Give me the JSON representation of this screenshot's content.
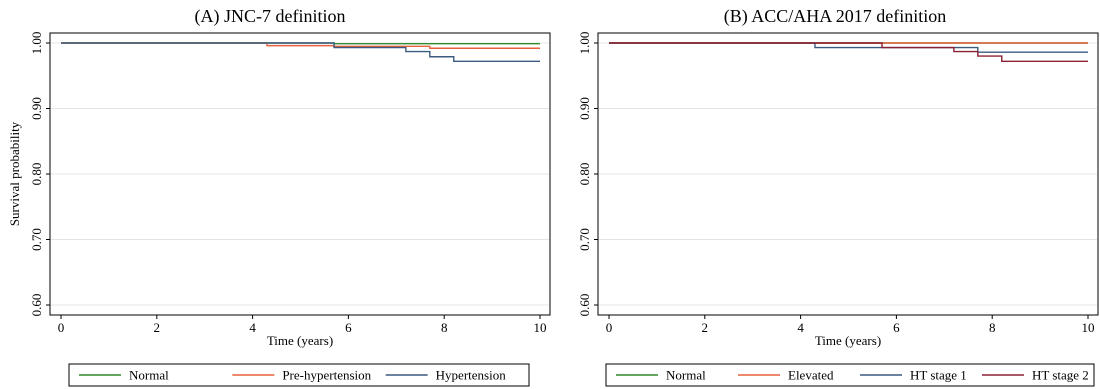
{
  "chart_data": [
    {
      "type": "line",
      "title": "(A) JNC-7 definition",
      "xlabel": "Time (years)",
      "ylabel": "Survival probability",
      "xlim": [
        0,
        10
      ],
      "ylim": [
        0.6,
        1.0
      ],
      "xticks": [
        "0",
        "2",
        "4",
        "6",
        "8",
        "10"
      ],
      "yticks": [
        "0.60",
        "0.70",
        "0.80",
        "0.90",
        "1.00"
      ],
      "grid": true,
      "legend_position": "bottom",
      "series": [
        {
          "name": "Normal",
          "color": "#2e8b2e",
          "x": [
            0,
            5.7,
            10
          ],
          "y": [
            1.0,
            0.999,
            0.999
          ]
        },
        {
          "name": "Pre-hypertension",
          "color": "#e8603c",
          "x": [
            0,
            4.3,
            5.7,
            7.7,
            10
          ],
          "y": [
            1.0,
            0.996,
            0.995,
            0.992,
            0.992
          ]
        },
        {
          "name": "Hypertension",
          "color": "#3b5a80",
          "x": [
            0,
            5.7,
            7.2,
            7.7,
            8.2,
            10
          ],
          "y": [
            1.0,
            0.993,
            0.987,
            0.979,
            0.972,
            0.972
          ]
        }
      ]
    },
    {
      "type": "line",
      "title": "(B) ACC/AHA 2017 definition",
      "xlabel": "Time (years)",
      "ylabel": "",
      "xlim": [
        0,
        10
      ],
      "ylim": [
        0.6,
        1.0
      ],
      "xticks": [
        "0",
        "2",
        "4",
        "6",
        "8",
        "10"
      ],
      "yticks": [
        "0.60",
        "0.70",
        "0.80",
        "0.90",
        "1.00"
      ],
      "grid": true,
      "legend_position": "bottom",
      "series": [
        {
          "name": "Normal",
          "color": "#2e8b2e",
          "x": [
            0,
            10
          ],
          "y": [
            1.0,
            1.0
          ]
        },
        {
          "name": "Elevated",
          "color": "#e8603c",
          "x": [
            0,
            10
          ],
          "y": [
            1.0,
            1.0
          ]
        },
        {
          "name": "HT stage 1",
          "color": "#3b5a80",
          "x": [
            0,
            4.3,
            7.7,
            10
          ],
          "y": [
            1.0,
            0.993,
            0.986,
            0.986
          ]
        },
        {
          "name": "HT stage 2",
          "color": "#8b2035",
          "x": [
            0,
            5.7,
            7.2,
            7.7,
            8.2,
            10
          ],
          "y": [
            1.0,
            0.993,
            0.987,
            0.98,
            0.972,
            0.972
          ]
        }
      ]
    }
  ]
}
